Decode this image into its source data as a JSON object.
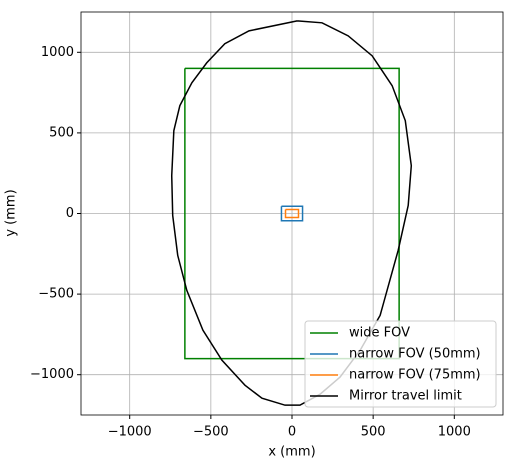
{
  "chart_data": {
    "type": "line",
    "xlabel": "x (mm)",
    "ylabel": "y (mm)",
    "xlim": [
      -1300,
      1300
    ],
    "ylim": [
      -1250,
      1250
    ],
    "xticks": [
      {
        "value": -1000,
        "label": "−1000"
      },
      {
        "value": -500,
        "label": "−500"
      },
      0,
      500,
      1000
    ],
    "yticks": [
      {
        "value": -1000,
        "label": "−1000"
      },
      {
        "value": -500,
        "label": "−500"
      },
      0,
      500,
      1000
    ],
    "grid": true,
    "legend": "lower right",
    "series": [
      {
        "name": "wide FOV",
        "color": "#008000",
        "x": [
          -660,
          660,
          660,
          -660,
          -660
        ],
        "values": [
          900,
          900,
          -900,
          -900,
          900
        ]
      },
      {
        "name": "narrow FOV (50mm)",
        "color": "#1f77b4",
        "x": [
          -65,
          65,
          65,
          -65,
          -65
        ],
        "values": [
          45,
          45,
          -45,
          -45,
          45
        ]
      },
      {
        "name": "narrow FOV (75mm)",
        "color": "#ff7f0e",
        "x": [
          -40,
          40,
          40,
          -40,
          -40
        ],
        "values": [
          25,
          25,
          -25,
          -25,
          25
        ]
      },
      {
        "name": "Mirror travel limit",
        "color": "#000000",
        "x": [
          32,
          -265,
          -414,
          -525,
          -617,
          -691,
          -728,
          -741,
          -735,
          -704,
          -648,
          -549,
          -432,
          -290,
          -185,
          -43,
          49,
          173,
          296,
          420,
          543,
          654,
          716,
          735,
          698,
          617,
          494,
          346,
          185,
          32
        ],
        "values": [
          1195,
          1133,
          1053,
          935,
          811,
          669,
          514,
          235,
          -12,
          -260,
          -477,
          -724,
          -910,
          -1065,
          -1146,
          -1189,
          -1189,
          -1121,
          -1015,
          -848,
          -632,
          -229,
          50,
          297,
          576,
          793,
          978,
          1102,
          1183,
          1195
        ]
      }
    ]
  }
}
